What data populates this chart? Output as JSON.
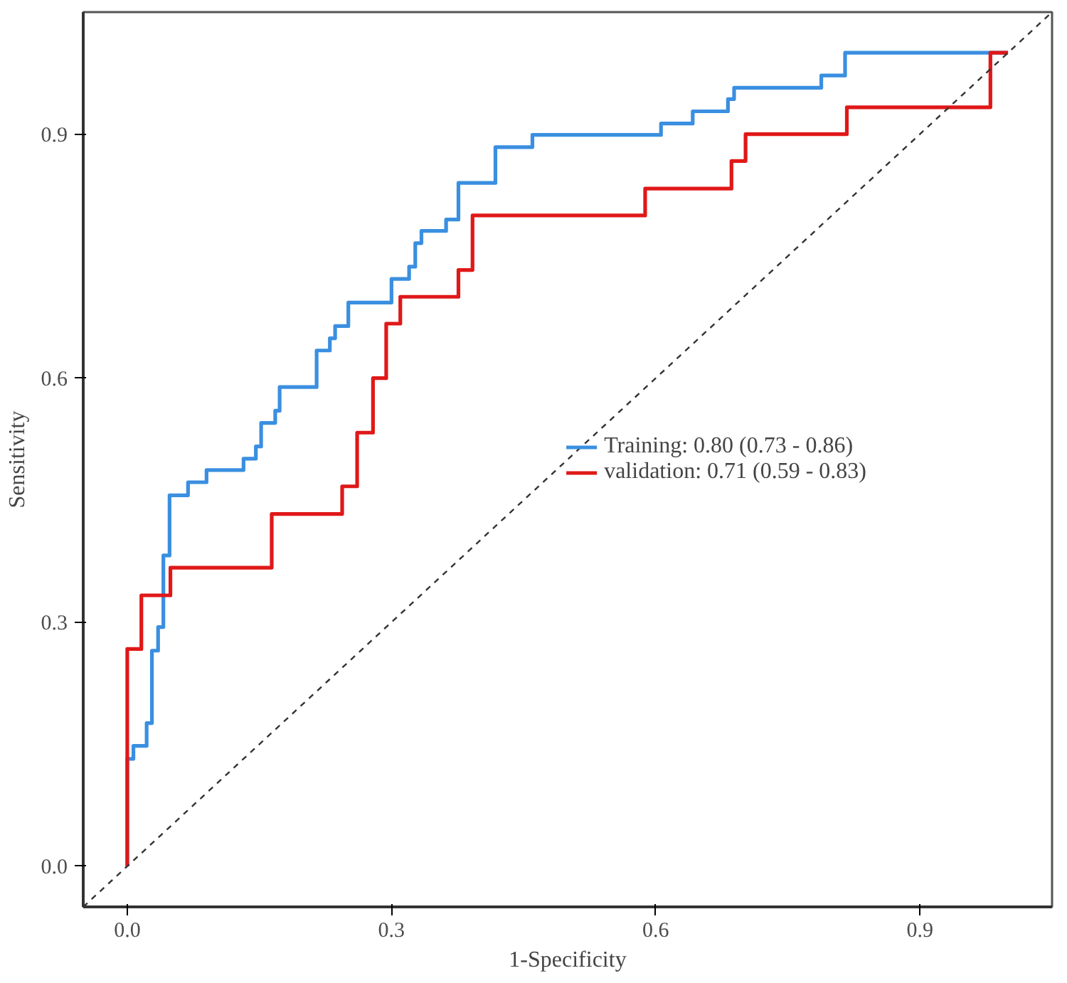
{
  "chart_data": {
    "type": "step",
    "xlabel": "1-Specificity",
    "ylabel": "Sensitivity",
    "xlim": [
      -0.05,
      1.05
    ],
    "ylim": [
      -0.05,
      1.05
    ],
    "xticks": [
      {
        "value": 0,
        "label": "0.0"
      },
      0.3,
      0.6,
      0.9
    ],
    "yticks": [
      {
        "value": 0,
        "label": "0.0"
      },
      0.3,
      0.6,
      0.9
    ],
    "grid": false,
    "legend": "right",
    "line_style": "solid",
    "marker": "none",
    "series": [
      {
        "name": "Training: 0.80 (0.73 - 0.86)",
        "color": "#3a8fe0",
        "x": [
          0,
          0,
          0.007,
          0.022,
          0.028,
          0.035,
          0.041,
          0.048,
          0.069,
          0.09,
          0.132,
          0.146,
          0.152,
          0.168,
          0.173,
          0.215,
          0.23,
          0.236,
          0.251,
          0.3,
          0.32,
          0.327,
          0.334,
          0.362,
          0.376,
          0.418,
          0.46,
          0.606,
          0.642,
          0.682,
          0.689,
          0.788,
          0.815,
          1.0
        ],
        "values": [
          0,
          0.132,
          0.148,
          0.176,
          0.265,
          0.294,
          0.382,
          0.456,
          0.472,
          0.487,
          0.501,
          0.516,
          0.545,
          0.56,
          0.589,
          0.634,
          0.649,
          0.664,
          0.693,
          0.722,
          0.737,
          0.766,
          0.781,
          0.795,
          0.84,
          0.884,
          0.899,
          0.913,
          0.928,
          0.943,
          0.957,
          0.972,
          1.0,
          1.0
        ]
      },
      {
        "name": "validation: 0.71 (0.59 - 0.83)",
        "color": "#e01818",
        "x": [
          0,
          0,
          0.016,
          0.049,
          0.164,
          0.244,
          0.261,
          0.279,
          0.294,
          0.31,
          0.376,
          0.392,
          0.588,
          0.686,
          0.702,
          0.817,
          0.98,
          1.0
        ],
        "values": [
          0,
          0.267,
          0.333,
          0.367,
          0.433,
          0.467,
          0.533,
          0.6,
          0.667,
          0.7,
          0.733,
          0.8,
          0.833,
          0.867,
          0.9,
          0.933,
          1.0,
          1.0
        ]
      },
      {
        "type": "line",
        "color": "#333333",
        "line_style": "dashed",
        "x": [
          -0.05,
          1.05
        ],
        "values": [
          -0.05,
          1.05
        ]
      }
    ]
  }
}
